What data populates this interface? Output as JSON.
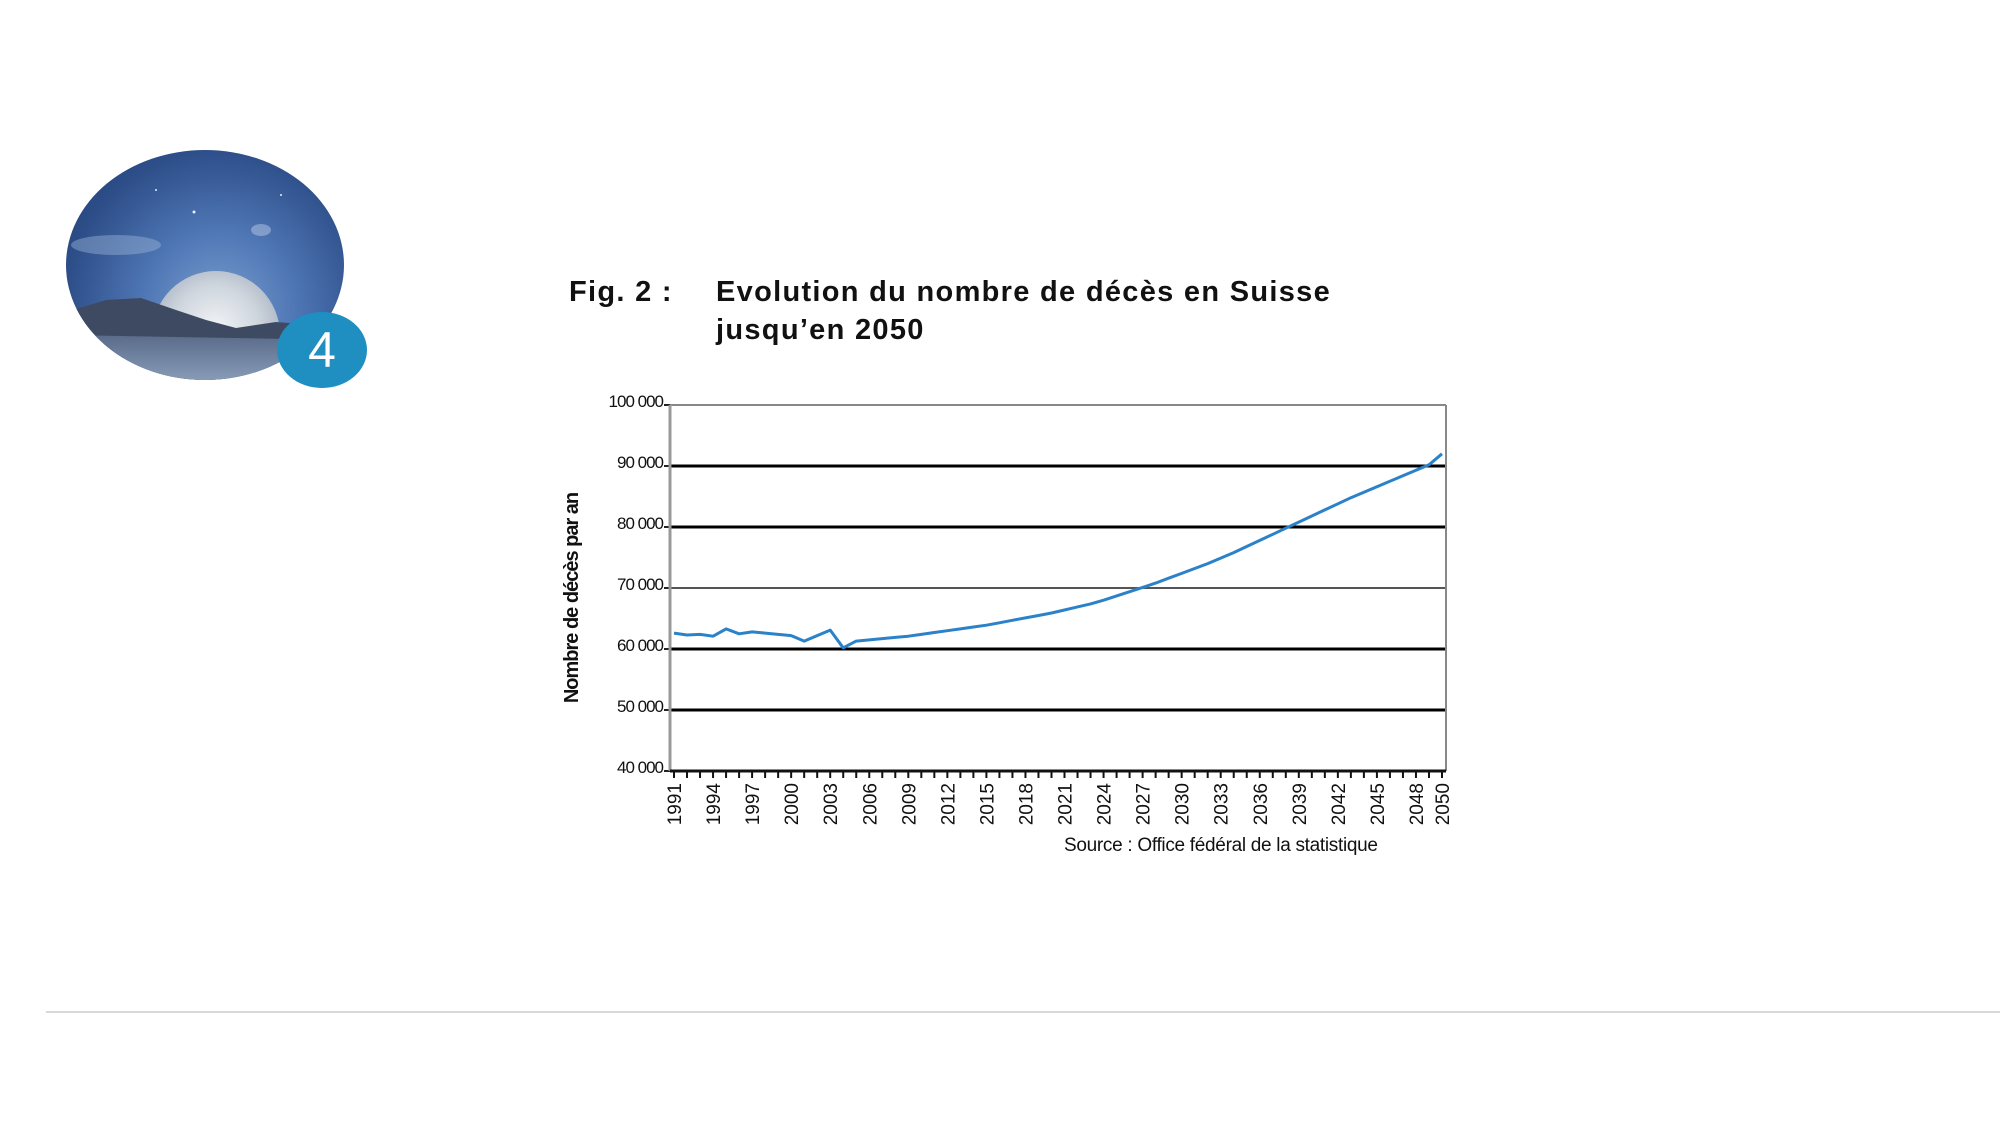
{
  "slide": {
    "badge_number": "4",
    "avatar_alt": "moon-over-mountains-photo"
  },
  "figure": {
    "label": "Fig. 2 :",
    "title": "Evolution du nombre de décès en Suisse jusqu’en 2050",
    "source": "Source : Office fédéral de la statistique"
  },
  "colors": {
    "line": "#2b82c9",
    "badge": "#1e8fc0",
    "grid_major": "#000000",
    "grid_minor": "#555555"
  },
  "chart_data": {
    "type": "line",
    "title": "Evolution du nombre de décès en Suisse jusqu’en 2050",
    "xlabel": "",
    "ylabel": "Nombre de décès par an",
    "ylim": [
      40000,
      100000
    ],
    "yticks": [
      40000,
      50000,
      60000,
      70000,
      80000,
      90000,
      100000
    ],
    "ytick_labels": [
      "40 000",
      "50 000",
      "60 000",
      "70 000",
      "80 000",
      "90 000",
      "100 000"
    ],
    "xtick_labels": [
      "1991",
      "1994",
      "1997",
      "2000",
      "2003",
      "2006",
      "2009",
      "2012",
      "2015",
      "2018",
      "2021",
      "2024",
      "2027",
      "2030",
      "2033",
      "2036",
      "2039",
      "2042",
      "2045",
      "2048",
      "2050"
    ],
    "grid": true,
    "legend": null,
    "source": "Source : Office fédéral de la statistique",
    "x": [
      1991,
      1992,
      1993,
      1994,
      1995,
      1996,
      1997,
      1998,
      1999,
      2000,
      2001,
      2002,
      2003,
      2004,
      2005,
      2006,
      2007,
      2008,
      2009,
      2010,
      2011,
      2012,
      2013,
      2014,
      2015,
      2016,
      2017,
      2018,
      2019,
      2020,
      2021,
      2022,
      2023,
      2024,
      2025,
      2026,
      2027,
      2028,
      2029,
      2030,
      2031,
      2032,
      2033,
      2034,
      2035,
      2036,
      2037,
      2038,
      2039,
      2040,
      2041,
      2042,
      2043,
      2044,
      2045,
      2046,
      2047,
      2048,
      2049,
      2050
    ],
    "series": [
      {
        "name": "Nombre de décès par an",
        "values": [
          62600,
          62300,
          62400,
          62100,
          63300,
          62500,
          62800,
          62600,
          62400,
          62200,
          61300,
          62200,
          63100,
          60200,
          61300,
          61500,
          61700,
          61900,
          62100,
          62400,
          62700,
          63000,
          63300,
          63600,
          63900,
          64300,
          64700,
          65100,
          65500,
          65900,
          66400,
          66900,
          67400,
          68000,
          68700,
          69400,
          70100,
          70800,
          71600,
          72400,
          73200,
          74000,
          74900,
          75800,
          76800,
          77800,
          78800,
          79800,
          80800,
          81800,
          82800,
          83800,
          84800,
          85700,
          86600,
          87500,
          88400,
          89300,
          90200,
          92000
        ]
      }
    ]
  }
}
